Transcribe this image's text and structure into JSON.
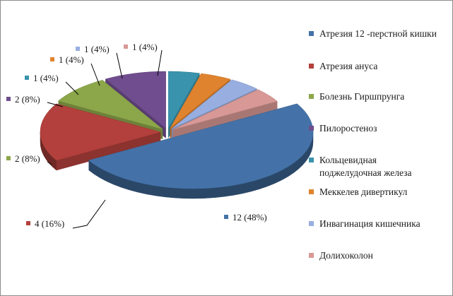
{
  "chart_data": {
    "type": "pie",
    "title": "",
    "style": "exploded 3D pie",
    "legend_position": "right",
    "slices": [
      {
        "name": "Атрезия 12 -перстной кишки",
        "value": 12,
        "label": "12 (48%)",
        "color": "#4472a8"
      },
      {
        "name": "Атрезия ануса",
        "value": 4,
        "label": "4 (16%)",
        "color": "#b3403c"
      },
      {
        "name": "Болезнь Гиршпрунга",
        "value": 2,
        "label": "2 (8%)",
        "color": "#8ca64a"
      },
      {
        "name": "Пилоростеноз",
        "value": 2,
        "label": "2 (8%)",
        "color": "#6f4d8e"
      },
      {
        "name": "Кольцевидная поджелудочная железа",
        "name_lines": [
          "Кольцевидная",
          "поджелудочная железа"
        ],
        "value": 1,
        "label": "1 (4%)",
        "color": "#3a93ac"
      },
      {
        "name": "Меккелев дивертикул",
        "value": 1,
        "label": "1 (4%)",
        "color": "#e0832e"
      },
      {
        "name": "Инвагинация кишечника",
        "value": 1,
        "label": "1 (4%)",
        "color": "#98aee0"
      },
      {
        "name": "Долихоколон",
        "value": 1,
        "label": "1 (4%)",
        "color": "#d89895"
      }
    ]
  }
}
